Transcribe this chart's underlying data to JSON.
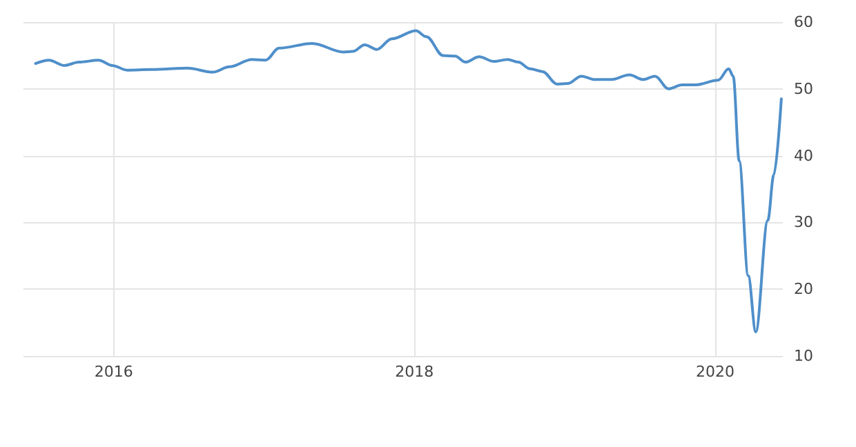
{
  "chart_data": {
    "type": "line",
    "x": [
      2015.48,
      2015.57,
      2015.67,
      2015.77,
      2015.9,
      2015.99,
      2016.09,
      2016.25,
      2016.49,
      2016.66,
      2016.77,
      2016.92,
      2017.01,
      2017.1,
      2017.32,
      2017.53,
      2017.59,
      2017.67,
      2017.75,
      2017.85,
      2018.01,
      2018.08,
      2018.19,
      2018.27,
      2018.34,
      2018.43,
      2018.53,
      2018.62,
      2018.69,
      2018.77,
      2018.85,
      2018.95,
      2019.02,
      2019.11,
      2019.2,
      2019.31,
      2019.43,
      2019.52,
      2019.6,
      2019.69,
      2019.78,
      2019.87,
      2020.02,
      2020.09,
      2020.12,
      2020.16,
      2020.22,
      2020.27,
      2020.35,
      2020.39,
      2020.44
    ],
    "series": [
      {
        "color": "#4f8fca",
        "values": [
          53.8,
          54.3,
          53.5,
          54.0,
          54.3,
          53.5,
          52.8,
          52.9,
          53.1,
          52.5,
          53.3,
          54.4,
          54.3,
          56.1,
          56.8,
          55.5,
          55.6,
          56.6,
          55.9,
          57.5,
          58.7,
          57.8,
          55.0,
          54.9,
          54.0,
          54.8,
          54.1,
          54.4,
          54.0,
          53.0,
          52.6,
          50.7,
          50.8,
          51.9,
          51.4,
          51.4,
          52.1,
          51.4,
          51.9,
          50.0,
          50.6,
          50.6,
          51.3,
          53.0,
          51.9,
          39.2,
          22.0,
          13.6,
          30.3,
          37.1,
          48.5
        ]
      }
    ],
    "xlim": [
      2015.4,
      2020.45
    ],
    "xticks": [
      2016,
      2018,
      2020
    ],
    "ylim": [
      10,
      60
    ],
    "yticks": [
      10,
      20,
      30,
      40,
      50,
      60
    ],
    "grid": true,
    "marker": "none",
    "line_style": "solid"
  }
}
